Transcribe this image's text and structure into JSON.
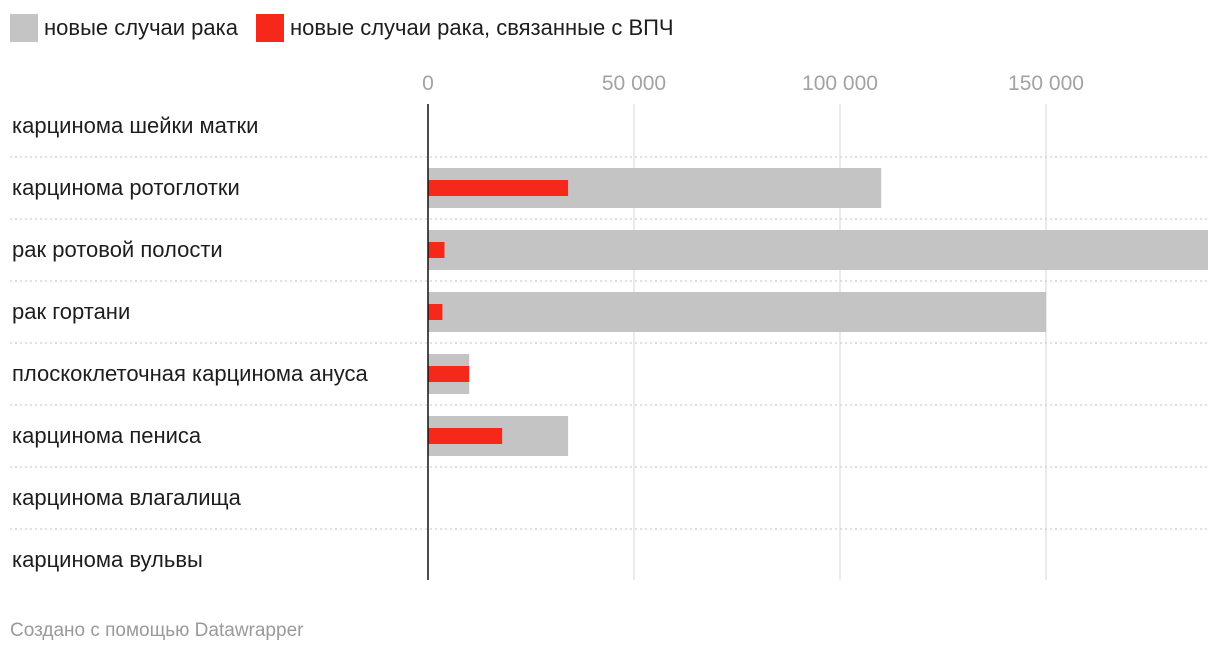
{
  "chart_data": {
    "type": "bar",
    "orientation": "horizontal",
    "categories": [
      "карцинома шейки матки",
      "карцинома ротоглотки",
      "рак ротовой полости",
      "рак гортани",
      "плоскоклеточная карцинома ануса",
      "карцинома пениса",
      "карцинома влагалища",
      "карцинома вульвы"
    ],
    "series": [
      {
        "name": "новые случаи рака",
        "color": "#c4c4c4",
        "values": [
          0,
          110000,
          190000,
          150000,
          10000,
          34000,
          0,
          0
        ]
      },
      {
        "name": "новые случаи рака, связанные с ВПЧ",
        "color": "#f5281a",
        "values": [
          0,
          34000,
          4000,
          3500,
          10000,
          18000,
          0,
          0
        ]
      }
    ],
    "xticks": [
      0,
      50000,
      100000,
      150000
    ],
    "xtick_labels": [
      "0",
      "50 000",
      "100 000",
      "150 000"
    ],
    "xlim": [
      0,
      190000
    ]
  },
  "legend": {
    "items": [
      {
        "label": "новые случаи рака",
        "color": "#c4c4c4"
      },
      {
        "label": "новые случаи рака, связанные с ВПЧ",
        "color": "#f5281a"
      }
    ]
  },
  "footer": {
    "text": "Создано с помощью Datawrapper"
  }
}
